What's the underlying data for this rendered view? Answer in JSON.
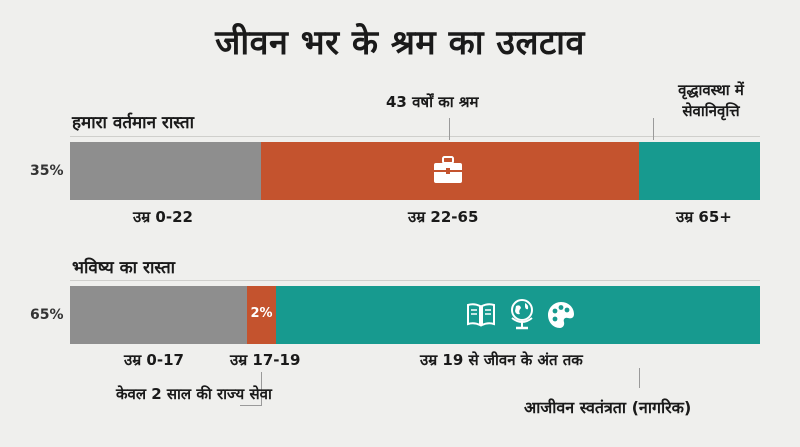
{
  "title": "जीवन भर के श्रम का उलटाव",
  "current": {
    "label": "हमारा वर्तमान रास्ता",
    "percent": "35%",
    "work_label": "43 वर्षों का श्रम",
    "retire_label": "वृद्धावस्था में सेवानिवृत्ति",
    "segments": [
      {
        "label": "उम्र 0-22",
        "color": "#8e8e8e"
      },
      {
        "label": "उम्र 22-65",
        "color": "#c4532e"
      },
      {
        "label": "उम्र 65+",
        "color": "#179a8f"
      }
    ]
  },
  "future": {
    "label": "भविष्य का रास्ता",
    "percent": "65%",
    "service_pct": "2%",
    "service_note": "केवल 2 साल की राज्य सेवा",
    "freedom_note": "आजीवन स्वतंत्रता (नागरिक)",
    "segments": [
      {
        "label": "उम्र 0-17",
        "color": "#8e8e8e"
      },
      {
        "label": "उम्र 17-19",
        "color": "#c4532e"
      },
      {
        "label": "उम्र 19 से जीवन के अंत तक",
        "color": "#179a8f"
      }
    ]
  },
  "icons": [
    "briefcase-icon",
    "book-icon",
    "globe-icon",
    "palette-icon"
  ],
  "colors": {
    "grey": "#8e8e8e",
    "orange": "#c4532e",
    "teal": "#179a8f",
    "background": "#efefed"
  }
}
